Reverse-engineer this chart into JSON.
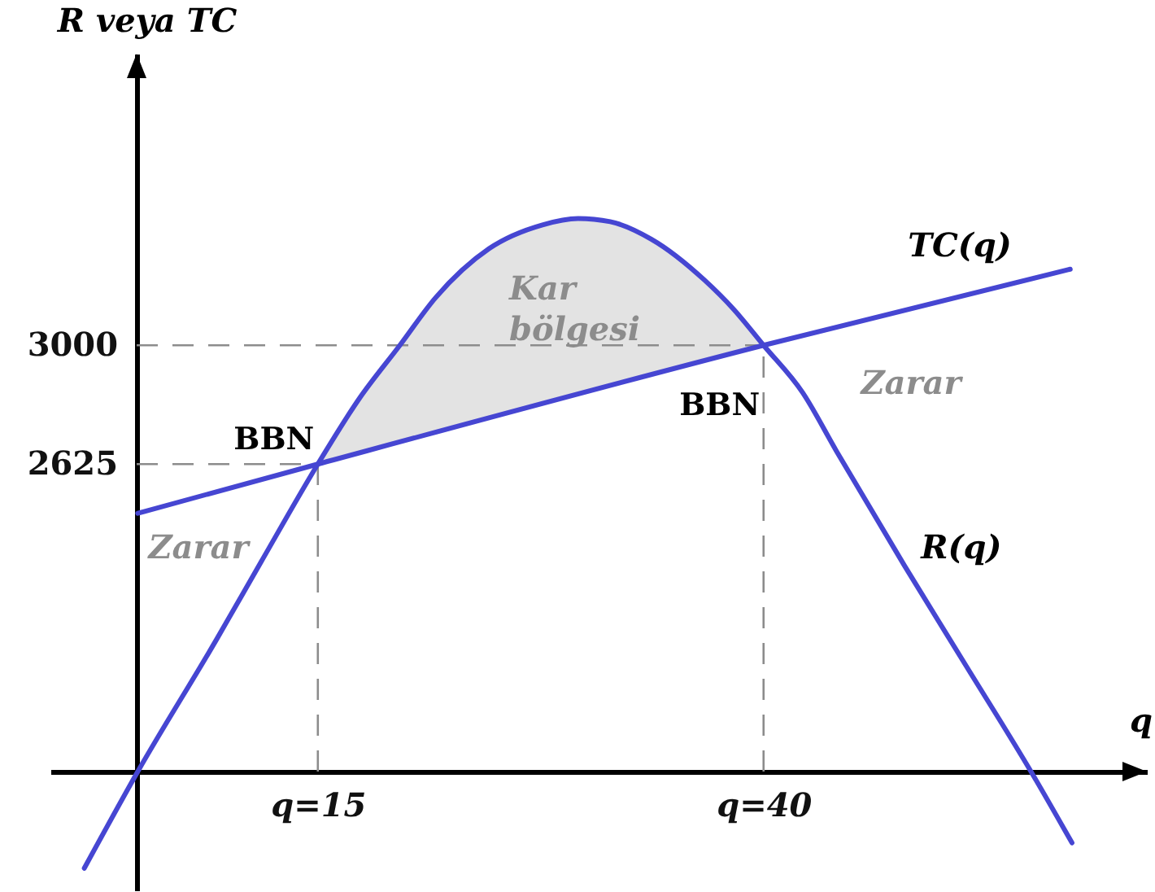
{
  "chart_data": {
    "type": "line",
    "xlabel": "q",
    "ylabel": "R veya TC",
    "xlim": [
      0,
      61.5
    ],
    "ylim": [
      1280,
      3920
    ],
    "xticks": [
      {
        "value": 15,
        "label": "q=15"
      },
      {
        "value": 40,
        "label": "q=40"
      }
    ],
    "yticks": [
      2625,
      3000
    ],
    "series": [
      {
        "name": "R(q)",
        "color": "#4646d2",
        "x": [
          1.9,
          4.9,
          9.3,
          11.8,
          15,
          17.3,
          19.6,
          21.6,
          24.6,
          27.6,
          29.6,
          31.4,
          33.7,
          36.7,
          38.3,
          40,
          42.2,
          44.1,
          47.9,
          51.4,
          55.0,
          57.3
        ],
        "values": [
          1350,
          1655,
          2070,
          2315,
          2625,
          2830,
          3000,
          3150,
          3305,
          3380,
          3400,
          3390,
          3335,
          3205,
          3115,
          3000,
          2850,
          2665,
          2305,
          1985,
          1655,
          1430
        ],
        "lower": [
          null,
          null,
          null,
          null,
          2625,
          2660,
          2695,
          2725,
          2770,
          2815,
          2845,
          2870,
          2905,
          2950,
          2975,
          3000,
          null,
          null,
          null,
          null,
          null,
          null
        ],
        "upper": [
          null,
          null,
          null,
          null,
          2625,
          2830,
          3000,
          3150,
          3305,
          3380,
          3400,
          3390,
          3335,
          3205,
          3115,
          3000,
          null,
          null,
          null,
          null,
          null,
          null
        ]
      },
      {
        "name": "TC(q)",
        "color": "#4646d2",
        "x": [
          4.9,
          15,
          40,
          57.2
        ],
        "values": [
          2470,
          2625,
          3000,
          3240
        ]
      }
    ],
    "ref_lines": [
      {
        "axis": "x",
        "value": 15,
        "color": "#8c8c8c",
        "line_style": "dashed"
      },
      {
        "axis": "x",
        "value": 40,
        "color": "#8c8c8c",
        "line_style": "dashed"
      },
      {
        "axis": "y",
        "value": 2625,
        "color": "#8c8c8c",
        "line_style": "dashed"
      },
      {
        "axis": "y",
        "value": 3000,
        "color": "#8c8c8c",
        "line_style": "dashed"
      }
    ],
    "annotations": [
      {
        "text": "BBN",
        "x": 15,
        "y": 2625
      },
      {
        "text": "BBN",
        "x": 40,
        "y": 3000
      },
      "Zarar",
      "Zarar",
      "Kar\nbölgesi"
    ]
  }
}
